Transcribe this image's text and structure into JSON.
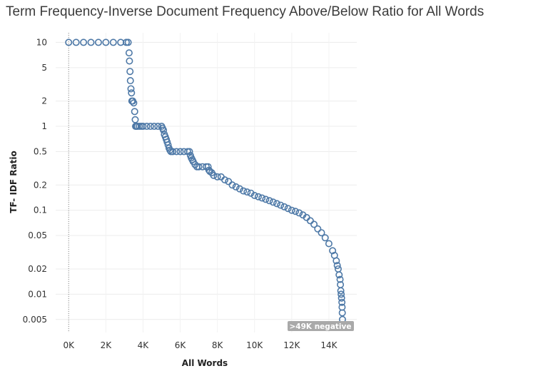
{
  "chart_data": {
    "type": "scatter",
    "title": "Term Frequency-Inverse Document Frequency Above/Below Ratio for All Words",
    "xlabel": "All Words",
    "ylabel": "TF- IDF Ratio",
    "x_ticks": [
      {
        "value": 0,
        "label": "0K"
      },
      {
        "value": 2000,
        "label": "2K"
      },
      {
        "value": 4000,
        "label": "4K"
      },
      {
        "value": 6000,
        "label": "6K"
      },
      {
        "value": 8000,
        "label": "8K"
      },
      {
        "value": 10000,
        "label": "10K"
      },
      {
        "value": 12000,
        "label": "12K"
      },
      {
        "value": 14000,
        "label": "14K"
      }
    ],
    "y_ticks": [
      {
        "value": 10,
        "label": "10"
      },
      {
        "value": 5,
        "label": "5"
      },
      {
        "value": 2,
        "label": "2"
      },
      {
        "value": 1,
        "label": "1"
      },
      {
        "value": 0.5,
        "label": "0.5"
      },
      {
        "value": 0.2,
        "label": "0.2"
      },
      {
        "value": 0.1,
        "label": "0.1"
      },
      {
        "value": 0.05,
        "label": "0.05"
      },
      {
        "value": 0.02,
        "label": "0.02"
      },
      {
        "value": 0.01,
        "label": "0.01"
      },
      {
        "value": 0.005,
        "label": "0.005"
      }
    ],
    "y_scale": "log",
    "xlim": [
      -700,
      15500
    ],
    "ylim": [
      0.0035,
      13
    ],
    "grid": true,
    "marker": "open-circle",
    "color": "#4e79a7",
    "annotation": ">49K negative",
    "series": [
      {
        "x": [
          0,
          400,
          800,
          1200,
          1600,
          2000,
          2400,
          2800,
          3100,
          3200,
          3250,
          3270,
          3300,
          3320,
          3350,
          3380,
          3400,
          3450,
          3500,
          3550,
          3580,
          3600,
          3620,
          3650,
          3700,
          3800,
          3900,
          4000,
          4200,
          4400,
          4600,
          4800,
          5000,
          5050,
          5100,
          5150,
          5200,
          5250,
          5300,
          5350,
          5400,
          5450,
          5500,
          5600,
          5800,
          6000,
          6200,
          6400,
          6500,
          6550,
          6600,
          6650,
          6700,
          6800,
          6900,
          7000,
          7200,
          7400,
          7500,
          7550,
          7600,
          7700,
          7800,
          8000,
          8200,
          8400,
          8600,
          8800,
          9000,
          9200,
          9400,
          9600,
          9800,
          10000,
          10200,
          10400,
          10600,
          10800,
          11000,
          11200,
          11400,
          11600,
          11800,
          12000,
          12200,
          12400,
          12600,
          12800,
          13000,
          13200,
          13400,
          13600,
          13800,
          14000,
          14200,
          14300,
          14400,
          14450,
          14500,
          14550,
          14600,
          14620,
          14640,
          14660,
          14680,
          14700,
          14710,
          14720,
          14730
        ],
        "y": [
          10,
          10,
          10,
          10,
          10,
          10,
          10,
          10,
          10,
          10,
          7.5,
          6,
          4.5,
          3.5,
          2.8,
          2.5,
          2,
          2,
          1.9,
          1.5,
          1.2,
          1,
          1,
          1,
          1,
          1,
          1,
          1,
          1,
          1,
          1,
          1,
          1,
          0.95,
          0.9,
          0.8,
          0.75,
          0.7,
          0.65,
          0.6,
          0.55,
          0.52,
          0.5,
          0.5,
          0.5,
          0.5,
          0.5,
          0.5,
          0.5,
          0.45,
          0.42,
          0.4,
          0.38,
          0.35,
          0.33,
          0.33,
          0.33,
          0.33,
          0.33,
          0.3,
          0.29,
          0.28,
          0.26,
          0.25,
          0.25,
          0.23,
          0.22,
          0.2,
          0.19,
          0.18,
          0.17,
          0.165,
          0.16,
          0.15,
          0.145,
          0.14,
          0.135,
          0.13,
          0.125,
          0.12,
          0.115,
          0.11,
          0.105,
          0.1,
          0.097,
          0.093,
          0.088,
          0.082,
          0.075,
          0.068,
          0.06,
          0.054,
          0.047,
          0.04,
          0.033,
          0.029,
          0.025,
          0.022,
          0.02,
          0.017,
          0.015,
          0.013,
          0.011,
          0.01,
          0.009,
          0.008,
          0.007,
          0.006,
          0.005
        ]
      }
    ]
  }
}
